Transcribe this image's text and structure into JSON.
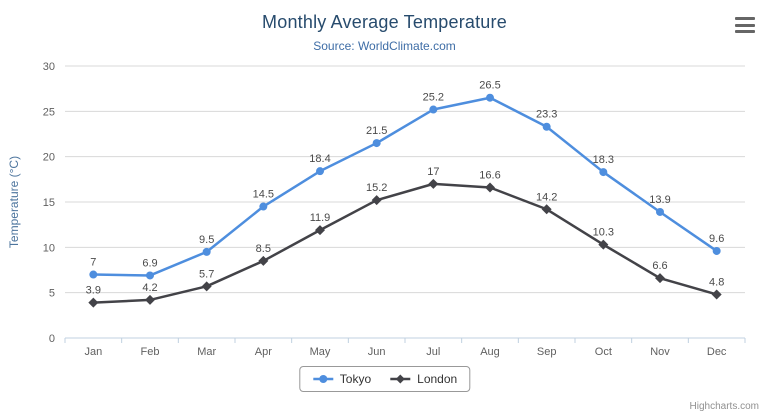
{
  "chart_data": {
    "type": "line",
    "title": "Monthly Average Temperature",
    "subtitle": "Source: WorldClimate.com",
    "xlabel": "",
    "ylabel": "Temperature (°C)",
    "ylim": [
      0,
      30
    ],
    "yticks": [
      0,
      5,
      10,
      15,
      20,
      25,
      30
    ],
    "grid": true,
    "legend_position": "bottom",
    "categories": [
      "Jan",
      "Feb",
      "Mar",
      "Apr",
      "May",
      "Jun",
      "Jul",
      "Aug",
      "Sep",
      "Oct",
      "Nov",
      "Dec"
    ],
    "series": [
      {
        "name": "Tokyo",
        "color": "#4e8ede",
        "marker": "circle",
        "values": [
          7,
          6.9,
          9.5,
          14.5,
          18.4,
          21.5,
          25.2,
          26.5,
          23.3,
          18.3,
          13.9,
          9.6
        ]
      },
      {
        "name": "London",
        "color": "#434348",
        "marker": "diamond",
        "values": [
          3.9,
          4.2,
          5.7,
          8.5,
          11.9,
          15.2,
          17,
          16.6,
          14.2,
          10.3,
          6.6,
          4.8
        ]
      }
    ]
  },
  "theme": {
    "background": "#ffffff",
    "title_color": "#274b6d",
    "subtitle_color": "#3e6da6",
    "axis_title_color": "#4d759e",
    "axis_label_color": "#606060",
    "grid_color": "#d8d8d8",
    "axis_line_color": "#c0d0e0",
    "data_label_color": "#4a4a4a",
    "legend_border_color": "#999999",
    "legend_text_color": "#333333",
    "credits_color": "#909090",
    "menu_icon_color": "#666666"
  },
  "icons": {
    "menu": "hamburger-icon"
  },
  "credits": "Highcharts.com"
}
